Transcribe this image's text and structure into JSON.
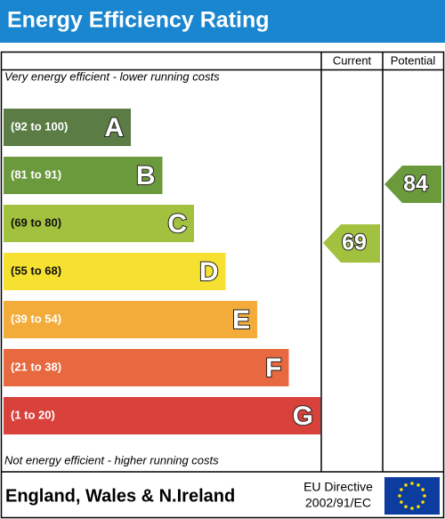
{
  "header": {
    "title": "Energy Efficiency Rating"
  },
  "columns": {
    "current": "Current",
    "potential": "Potential"
  },
  "top_note": "Very energy efficient - lower running costs",
  "bottom_note": "Not energy efficient - higher running costs",
  "bands": [
    {
      "range": "(92 to 100)",
      "letter": "A",
      "color": "#5b7d45",
      "text_color": "#ffffff"
    },
    {
      "range": "(81 to 91)",
      "letter": "B",
      "color": "#6b9a3d",
      "text_color": "#ffffff"
    },
    {
      "range": "(69 to 80)",
      "letter": "C",
      "color": "#a2c13e",
      "text_color": "#111111"
    },
    {
      "range": "(55 to 68)",
      "letter": "D",
      "color": "#f6e131",
      "text_color": "#111111"
    },
    {
      "range": "(39 to 54)",
      "letter": "E",
      "color": "#f3ac3a",
      "text_color": "#ffffff"
    },
    {
      "range": "(21 to 38)",
      "letter": "F",
      "color": "#e8683f",
      "text_color": "#ffffff"
    },
    {
      "range": "(1 to 20)",
      "letter": "G",
      "color": "#d9413b",
      "text_color": "#ffffff"
    }
  ],
  "ratings": {
    "current": 69,
    "current_color": "#a2c13e",
    "potential": 84,
    "potential_color": "#6b9a3d"
  },
  "footer": {
    "region": "England, Wales & N.Ireland",
    "directive": [
      "EU Directive",
      "2002/91/EC"
    ]
  }
}
